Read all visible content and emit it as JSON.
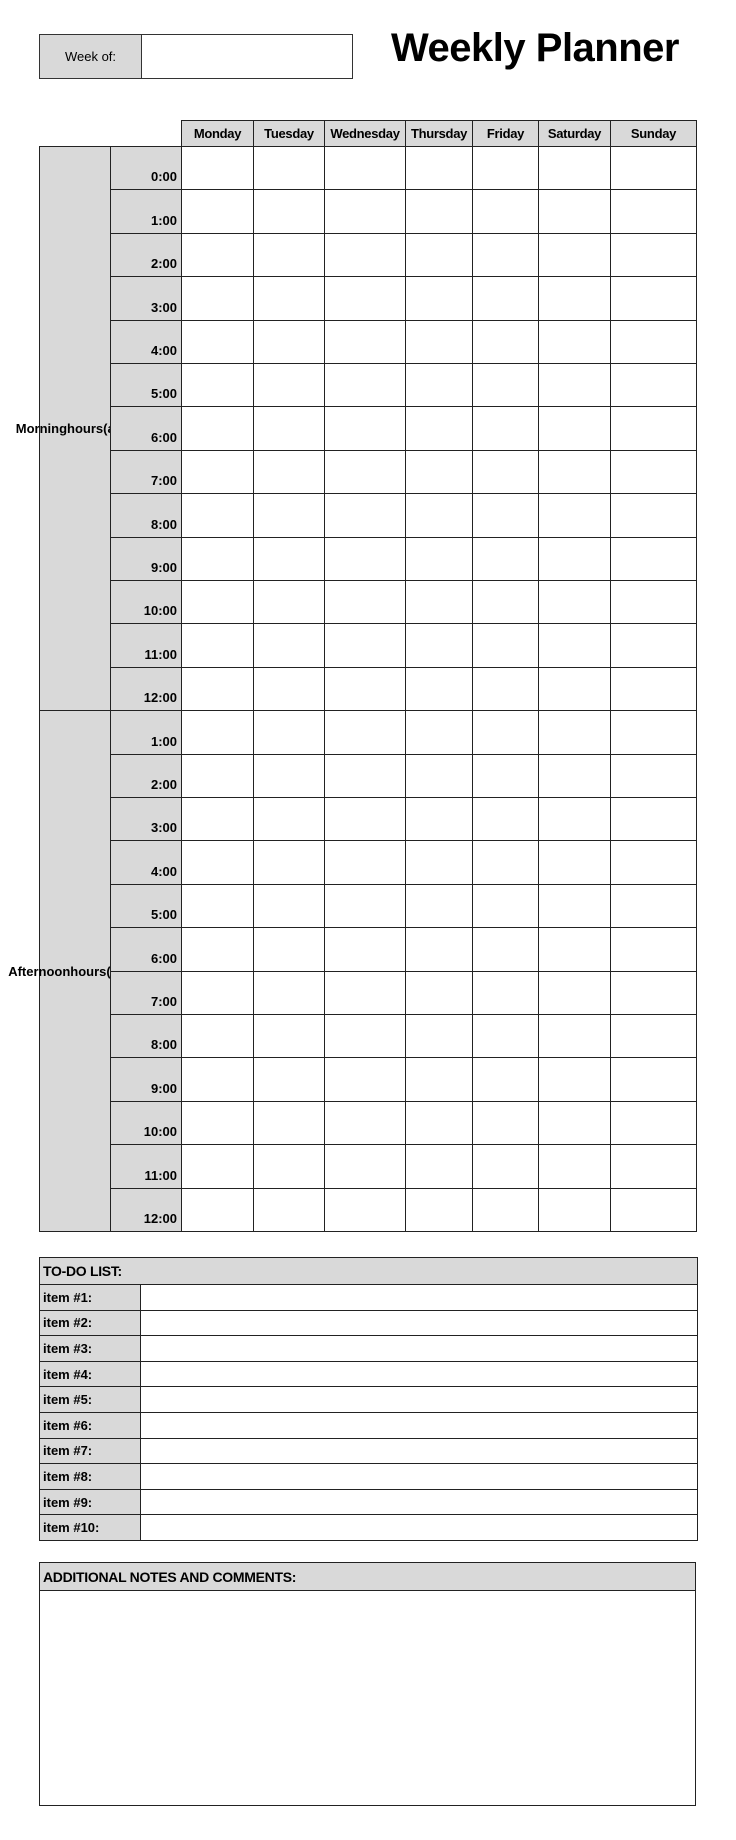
{
  "header": {
    "week_of_label": "Week of:",
    "week_of_value": "",
    "title": "Weekly Planner"
  },
  "schedule": {
    "days": [
      "Monday",
      "Tuesday",
      "Wednesday",
      "Thursday",
      "Friday",
      "Saturday",
      "Sunday"
    ],
    "morning": {
      "label_lines": [
        "Morning",
        "hours",
        "(a.m)"
      ],
      "times": [
        "0:00",
        "1:00",
        "2:00",
        "3:00",
        "4:00",
        "5:00",
        "6:00",
        "7:00",
        "8:00",
        "9:00",
        "10:00",
        "11:00",
        "12:00"
      ]
    },
    "afternoon": {
      "label_lines": [
        "Afternoon",
        "hours",
        "(p.m.)"
      ],
      "times": [
        "1:00",
        "2:00",
        "3:00",
        "4:00",
        "5:00",
        "6:00",
        "7:00",
        "8:00",
        "9:00",
        "10:00",
        "11:00",
        "12:00"
      ]
    }
  },
  "todo": {
    "title": "TO-DO LIST:",
    "items": [
      "item #1:",
      "item #2:",
      "item #3:",
      "item #4:",
      "item #5:",
      "item #6:",
      "item #7:",
      "item #8:",
      "item #9:",
      "item #10:"
    ]
  },
  "notes": {
    "title": "ADDITIONAL NOTES AND COMMENTS:"
  },
  "colors": {
    "header_fill": "#d9d9d9",
    "border": "#222222"
  }
}
